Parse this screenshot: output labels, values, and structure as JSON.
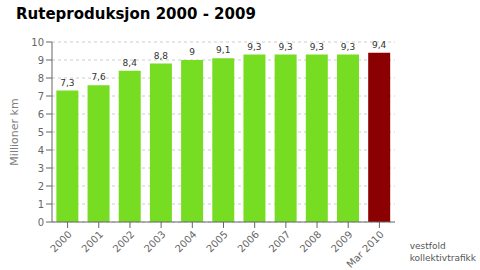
{
  "chart_data": {
    "type": "bar",
    "title": "Ruteproduksjon 2000 - 2009",
    "categories": [
      "2000",
      "2001",
      "2002",
      "2003",
      "2004",
      "2005",
      "2006",
      "2007",
      "2008",
      "2009",
      "Mar 2010"
    ],
    "values": [
      7.3,
      7.6,
      8.4,
      8.8,
      9.0,
      9.1,
      9.3,
      9.3,
      9.3,
      9.3,
      9.4
    ],
    "value_labels": [
      "7,3",
      "7,6",
      "8,4",
      "8,8",
      "9",
      "9,1",
      "9,3",
      "9,3",
      "9,3",
      "9,3",
      "9,4"
    ],
    "colors": [
      "#77dd22",
      "#77dd22",
      "#77dd22",
      "#77dd22",
      "#77dd22",
      "#77dd22",
      "#77dd22",
      "#77dd22",
      "#77dd22",
      "#77dd22",
      "#8b0000"
    ],
    "ylabel": "Millioner km",
    "ylim": [
      0,
      10
    ],
    "yticks": [
      0,
      1,
      2,
      3,
      4,
      5,
      6,
      7,
      8,
      9,
      10
    ],
    "grid": true,
    "data_labels": true,
    "annotations": [
      "vestfold\nkollektivtrafikk"
    ]
  }
}
